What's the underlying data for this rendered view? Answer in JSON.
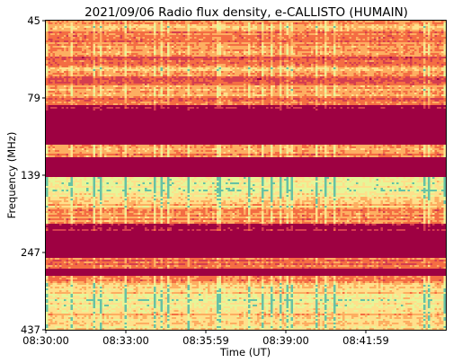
{
  "chart_data": {
    "type": "heatmap",
    "title": "2021/09/06  Radio flux density, e-CALLISTO (HUMAIN)",
    "xlabel": "Time (UT)",
    "ylabel": "Frequency (MHz)",
    "x_ticks": [
      "08:30:00",
      "08:33:00",
      "08:35:59",
      "08:39:00",
      "08:41:59"
    ],
    "y_ticks": [
      "45",
      "79",
      "139",
      "247",
      "437"
    ],
    "x_range": [
      "08:30:00",
      "08:45:00"
    ],
    "y_range": [
      45,
      437
    ],
    "y_scale": "log (tick labels at approximately equal spacing)",
    "grid": false,
    "colormap": "Spectral",
    "colors": {
      "low_intensity": "#9e0142",
      "mid_low": "#d53e4f",
      "mid": "#f46d43",
      "mid_high": "#fdae61",
      "high": "#fee08b",
      "very_high": "#e6f598",
      "peak": "#66c2a5"
    },
    "bands": [
      {
        "f_start": 45,
        "f_end": 79,
        "level": "moderate, striated"
      },
      {
        "f_start": 79,
        "f_end": 139,
        "level": "low, with narrow moderate strips"
      },
      {
        "f_start": 139,
        "f_end": 185,
        "level": "high, intermittent peaks"
      },
      {
        "f_start": 185,
        "f_end": 300,
        "level": "low"
      },
      {
        "f_start": 300,
        "f_end": 437,
        "level": "high, intermittent peaks"
      }
    ]
  }
}
